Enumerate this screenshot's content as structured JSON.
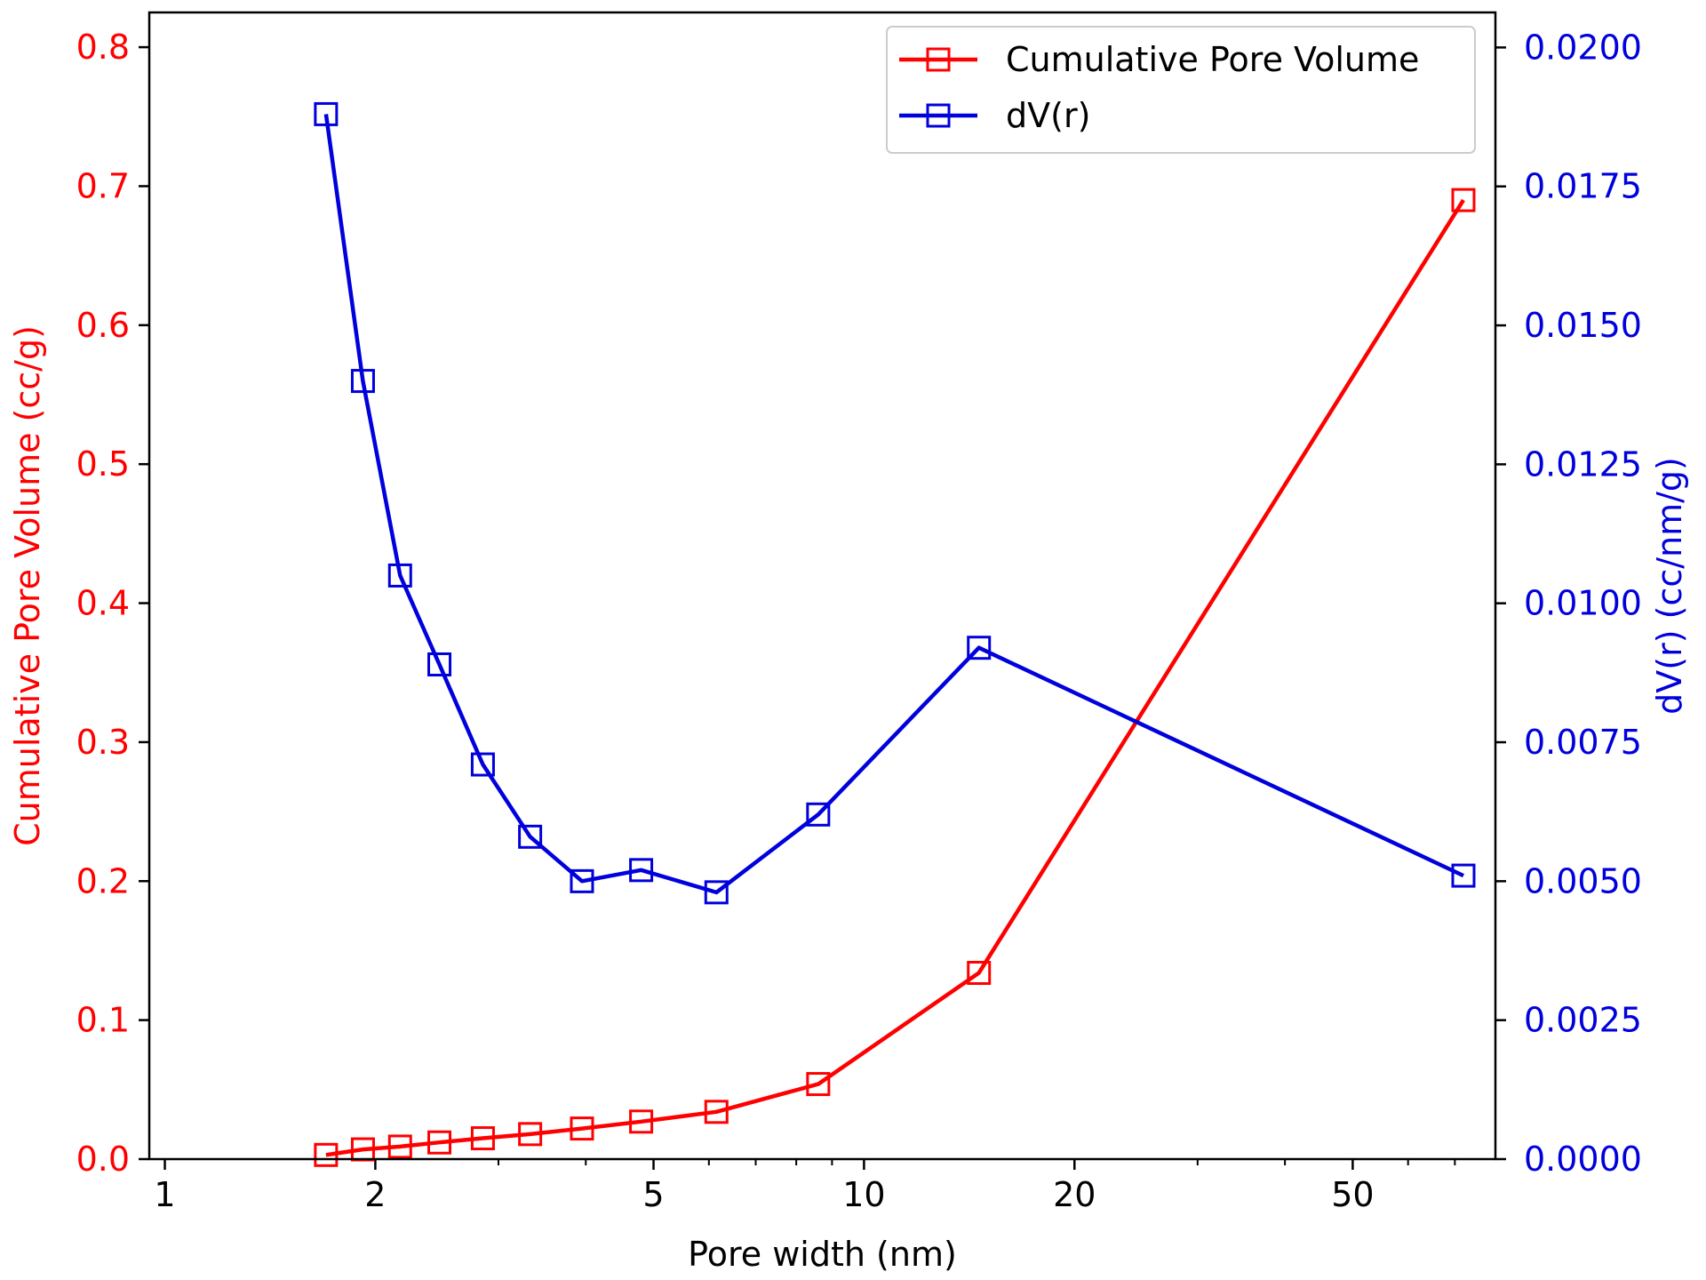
{
  "chart_data": {
    "type": "line",
    "title": "",
    "xlabel": "Pore width (nm)",
    "xscale": "log",
    "xlim": [
      0.95,
      80
    ],
    "xticks": [
      {
        "value": 1,
        "label": "1"
      },
      {
        "value": 2,
        "label": "2"
      },
      {
        "value": 5,
        "label": "5"
      },
      {
        "value": 10,
        "label": "10"
      },
      {
        "value": 20,
        "label": "20"
      },
      {
        "value": 50,
        "label": "50"
      }
    ],
    "x_minor_ticks": [
      3,
      4,
      6,
      7,
      8,
      9,
      30,
      40,
      60,
      70
    ],
    "left_axis": {
      "label": "Cumulative Pore Volume (cc/g)",
      "color": "#ff0000",
      "ylim": [
        0,
        0.825
      ],
      "ticks": [
        {
          "value": 0.0,
          "label": "0.0"
        },
        {
          "value": 0.1,
          "label": "0.1"
        },
        {
          "value": 0.2,
          "label": "0.2"
        },
        {
          "value": 0.3,
          "label": "0.3"
        },
        {
          "value": 0.4,
          "label": "0.4"
        },
        {
          "value": 0.5,
          "label": "0.5"
        },
        {
          "value": 0.6,
          "label": "0.6"
        },
        {
          "value": 0.7,
          "label": "0.7"
        },
        {
          "value": 0.8,
          "label": "0.8"
        }
      ]
    },
    "right_axis": {
      "label": "dV(r) (cc/nm/g)",
      "color": "#0000dd",
      "ylim": [
        0,
        0.02063
      ],
      "ticks": [
        {
          "value": 0.0,
          "label": "0.0000"
        },
        {
          "value": 0.0025,
          "label": "0.0025"
        },
        {
          "value": 0.005,
          "label": "0.0050"
        },
        {
          "value": 0.0075,
          "label": "0.0075"
        },
        {
          "value": 0.01,
          "label": "0.0100"
        },
        {
          "value": 0.0125,
          "label": "0.0125"
        },
        {
          "value": 0.015,
          "label": "0.0150"
        },
        {
          "value": 0.0175,
          "label": "0.0175"
        },
        {
          "value": 0.02,
          "label": "0.0200"
        }
      ]
    },
    "series": [
      {
        "name": "Cumulative Pore Volume",
        "axis": "left",
        "color": "#ff0000",
        "marker": "open-square",
        "x": [
          1.7,
          1.92,
          2.17,
          2.47,
          2.85,
          3.33,
          3.95,
          4.8,
          6.15,
          8.6,
          14.6,
          72.0
        ],
        "y": [
          0.003,
          0.007,
          0.009,
          0.012,
          0.015,
          0.018,
          0.022,
          0.027,
          0.034,
          0.054,
          0.134,
          0.69
        ]
      },
      {
        "name": "dV(r)",
        "axis": "right",
        "color": "#0000dd",
        "marker": "open-square",
        "x": [
          1.7,
          1.92,
          2.17,
          2.47,
          2.85,
          3.33,
          3.95,
          4.8,
          6.15,
          8.6,
          14.6,
          72.0
        ],
        "y": [
          0.0188,
          0.014,
          0.0105,
          0.0089,
          0.0071,
          0.0058,
          0.005,
          0.0052,
          0.0048,
          0.0062,
          0.0092,
          0.0051
        ]
      }
    ],
    "legend": {
      "position": "top-right"
    }
  }
}
